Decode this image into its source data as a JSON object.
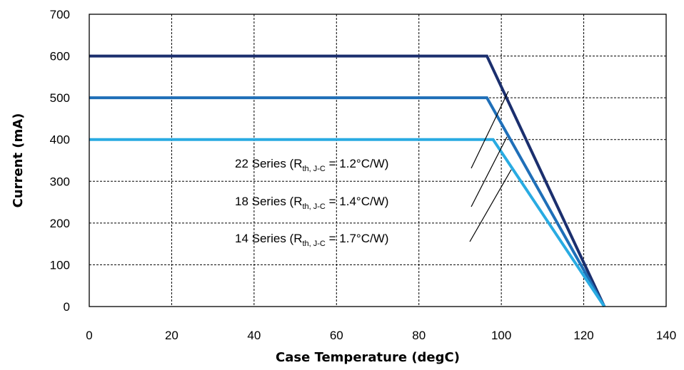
{
  "chart_data": {
    "type": "line",
    "title": "",
    "xlabel": "Case Temperature (degC)",
    "ylabel": "Current (mA)",
    "xlim": [
      0,
      140
    ],
    "ylim": [
      0,
      700
    ],
    "x_ticks": [
      "0",
      "20",
      "40",
      "60",
      "80",
      "100",
      "120",
      "140"
    ],
    "y_ticks": [
      "0",
      "100",
      "200",
      "300",
      "400",
      "500",
      "600",
      "700"
    ],
    "grid": true,
    "series": [
      {
        "color": "#1b2f6e",
        "x": [
          0,
          96.5,
          125
        ],
        "y": [
          600,
          600,
          0
        ]
      },
      {
        "color": "#1f6fb8",
        "x": [
          0,
          96.5,
          125
        ],
        "y": [
          500,
          500,
          0
        ]
      },
      {
        "color": "#29abe2",
        "x": [
          0,
          98,
          125
        ],
        "y": [
          400,
          400,
          0
        ]
      }
    ],
    "annotations": [
      {
        "prefix": "22 Series (R",
        "sub": "th, J-C",
        "suffix": " = 1.2°C/W)"
      },
      {
        "prefix": "18 Series (R",
        "sub": "th, J-C",
        "suffix": " = 1.4°C/W)"
      },
      {
        "prefix": "14 Series (R",
        "sub": "th, J-C",
        "suffix": " = 1.7°C/W)"
      }
    ]
  }
}
